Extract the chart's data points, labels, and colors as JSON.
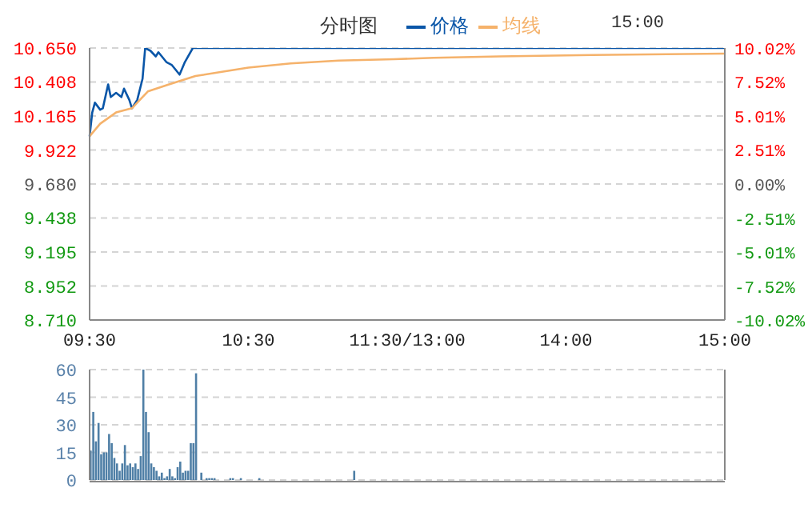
{
  "chart_data": [
    {
      "type": "line",
      "title": "分时图",
      "legend": "top",
      "grid": true,
      "annotations": [
        "15:00"
      ],
      "categories": [
        "09:30",
        null,
        null,
        null,
        null,
        null,
        null,
        null,
        null,
        null,
        null,
        null,
        null,
        null,
        null,
        null,
        null,
        null,
        null,
        null,
        null,
        null,
        null,
        null,
        null,
        null,
        null,
        null,
        null,
        null,
        null,
        null,
        null,
        null,
        null,
        null,
        null,
        null,
        null,
        null,
        null,
        null,
        null,
        null,
        null,
        null,
        null,
        null,
        null,
        null,
        null,
        null,
        null,
        null,
        null,
        null,
        null,
        null,
        null,
        null,
        "10:30",
        null,
        null,
        null,
        null,
        null,
        null,
        null,
        null,
        null,
        null,
        null,
        null,
        null,
        null,
        null,
        null,
        null,
        null,
        null,
        null,
        null,
        null,
        null,
        null,
        null,
        null,
        null,
        null,
        null,
        null,
        null,
        null,
        null,
        null,
        null,
        null,
        null,
        null,
        null,
        null,
        null,
        null,
        null,
        null,
        null,
        null,
        null,
        null,
        null,
        null,
        null,
        null,
        null,
        null,
        null,
        null,
        null,
        null,
        null,
        "11:30/13:00",
        null,
        null,
        null,
        null,
        null,
        null,
        null,
        null,
        null,
        null,
        null,
        null,
        null,
        null,
        null,
        null,
        null,
        null,
        null,
        null,
        null,
        null,
        null,
        null,
        null,
        null,
        null,
        null,
        null,
        null,
        null,
        null,
        null,
        null,
        null,
        null,
        null,
        null,
        null,
        null,
        null,
        null,
        null,
        null,
        null,
        null,
        null,
        null,
        null,
        null,
        null,
        null,
        null,
        null,
        null,
        null,
        null,
        null,
        null,
        "14:00",
        null,
        null,
        null,
        null,
        null,
        null,
        null,
        null,
        null,
        null,
        null,
        null,
        null,
        null,
        null,
        null,
        null,
        null,
        null,
        null,
        null,
        null,
        null,
        null,
        null,
        null,
        null,
        null,
        null,
        null,
        null,
        null,
        null,
        null,
        null,
        null,
        null,
        null,
        null,
        null,
        null,
        null,
        null,
        null,
        null,
        null,
        null,
        null,
        null,
        null,
        null,
        null,
        null,
        null,
        null,
        null,
        null,
        null,
        null,
        "15:00"
      ],
      "ylim": [
        8.71,
        10.65
      ],
      "yticks": [
        {
          "value": 8.71,
          "label": "8.710"
        },
        8.952,
        9.195,
        9.438,
        {
          "value": 9.68,
          "label": "9.680"
        },
        9.922,
        10.165,
        10.408,
        {
          "value": 10.65,
          "label": "10.650"
        }
      ],
      "y2lim": [
        -10.02,
        10.02
      ],
      "y2ticks": [
        {
          "value": -10.02,
          "label": "-10.02%"
        },
        {
          "value": -7.52,
          "label": "-7.52%"
        },
        {
          "value": -5.01,
          "label": "-5.01%"
        },
        {
          "value": -2.51,
          "label": "-2.51%"
        },
        {
          "value": 0,
          "label": "0.00%"
        },
        {
          "value": 2.51,
          "label": "2.51%"
        },
        {
          "value": 5.01,
          "label": "5.01%"
        },
        {
          "value": 7.52,
          "label": "7.52%"
        },
        {
          "value": 10.02,
          "label": "10.02%"
        }
      ],
      "series": [
        {
          "name": "价格",
          "color": "#0a56a8",
          "values": [
            10.02,
            10.19,
            10.26,
            null,
            10.21,
            10.22,
            null,
            10.39,
            10.3,
            null,
            10.33,
            null,
            10.3,
            10.36,
            null,
            10.28,
            10.22,
            null,
            10.28,
            null,
            10.43,
            10.65,
            null,
            10.63,
            null,
            10.59,
            10.62,
            null,
            null,
            10.55,
            null,
            10.53,
            null,
            null,
            10.46,
            null,
            10.55,
            null,
            null,
            10.65,
            null,
            null,
            null,
            null,
            null,
            null,
            null,
            null,
            null,
            null,
            null,
            null,
            null,
            null,
            null,
            null,
            null,
            null,
            null,
            null,
            null,
            null,
            null,
            null,
            null,
            null,
            null,
            null,
            null,
            null,
            null,
            null,
            null,
            null,
            null,
            null,
            null,
            null,
            null,
            null,
            null,
            null,
            null,
            null,
            null,
            null,
            null,
            null,
            null,
            null,
            null,
            null,
            null,
            null,
            null,
            null,
            null,
            null,
            null,
            null,
            null,
            null,
            null,
            null,
            null,
            null,
            null,
            null,
            null,
            null,
            null,
            null,
            null,
            null,
            null,
            null,
            null,
            null,
            null,
            null,
            null,
            null,
            null,
            null,
            null,
            null,
            null,
            null,
            null,
            null,
            null,
            null,
            null,
            null,
            null,
            null,
            null,
            null,
            null,
            null,
            null,
            null,
            null,
            null,
            null,
            null,
            null,
            null,
            null,
            null,
            null,
            null,
            null,
            null,
            null,
            null,
            null,
            null,
            null,
            null,
            null,
            null,
            null,
            null,
            null,
            null,
            null,
            null,
            null,
            null,
            null,
            null,
            null,
            null,
            null,
            null,
            null,
            null,
            null,
            null,
            null,
            null,
            null,
            null,
            null,
            null,
            null,
            null,
            null,
            null,
            null,
            null,
            null,
            null,
            null,
            null,
            null,
            null,
            null,
            null,
            null,
            null,
            null,
            null,
            null,
            null,
            null,
            null,
            null,
            null,
            null,
            null,
            null,
            null,
            null,
            null,
            null,
            null,
            null,
            null,
            null,
            null,
            null,
            null,
            null,
            null,
            null,
            null,
            null,
            null,
            null,
            null,
            null,
            null,
            null,
            null,
            null,
            null,
            null,
            null,
            10.65
          ]
        },
        {
          "name": "均线",
          "color": "#f5b26b",
          "values": [
            10.02,
            null,
            null,
            null,
            10.11,
            null,
            null,
            null,
            null,
            null,
            10.19,
            null,
            null,
            null,
            null,
            null,
            10.22,
            null,
            null,
            null,
            null,
            null,
            10.34,
            null,
            null,
            null,
            null,
            null,
            null,
            null,
            10.39,
            null,
            null,
            null,
            null,
            null,
            null,
            null,
            null,
            null,
            10.45,
            null,
            null,
            null,
            null,
            null,
            null,
            null,
            null,
            null,
            10.48,
            null,
            null,
            null,
            null,
            null,
            null,
            null,
            null,
            null,
            10.51,
            null,
            null,
            null,
            null,
            null,
            null,
            null,
            null,
            null,
            null,
            null,
            null,
            null,
            null,
            null,
            10.54,
            null,
            null,
            null,
            null,
            null,
            null,
            null,
            null,
            null,
            null,
            null,
            null,
            null,
            null,
            null,
            null,
            null,
            10.56,
            null,
            null,
            null,
            null,
            null,
            null,
            null,
            null,
            null,
            null,
            null,
            null,
            null,
            null,
            null,
            null,
            null,
            null,
            null,
            null,
            10.57,
            null,
            null,
            null,
            null,
            null,
            null,
            null,
            null,
            null,
            null,
            null,
            null,
            null,
            null,
            10.58,
            null,
            null,
            null,
            null,
            null,
            null,
            null,
            null,
            null,
            null,
            null,
            null,
            null,
            null,
            null,
            null,
            null,
            null,
            null,
            null,
            null,
            null,
            null,
            null,
            10.59,
            null,
            null,
            null,
            null,
            null,
            null,
            null,
            null,
            null,
            null,
            null,
            null,
            null,
            null,
            null,
            null,
            null,
            null,
            null,
            null,
            null,
            null,
            null,
            null,
            null,
            null,
            null,
            null,
            null,
            null,
            null,
            null,
            null,
            null,
            10.6,
            null,
            null,
            null,
            null,
            null,
            null,
            null,
            null,
            null,
            null,
            null,
            null,
            null,
            null,
            null,
            null,
            null,
            null,
            null,
            null,
            null,
            null,
            null,
            null,
            null,
            null,
            null,
            null,
            null,
            null,
            null,
            null,
            null,
            null,
            null,
            null,
            null,
            null,
            null,
            null,
            null,
            null,
            null,
            null,
            null,
            null,
            null,
            null,
            null,
            10.61
          ]
        }
      ]
    },
    {
      "type": "bar",
      "grid": true,
      "tick_labels": "y",
      "color": "#4f7fa6",
      "categories": [
        null,
        null,
        null,
        null,
        null,
        null,
        null,
        null,
        null,
        null,
        null,
        null,
        null,
        null,
        null,
        null,
        null,
        null,
        null,
        null,
        null,
        null,
        null,
        null,
        null,
        null,
        null,
        null,
        null,
        null,
        null,
        null,
        null,
        null,
        null,
        null,
        null,
        null,
        null,
        null,
        null,
        null,
        null,
        null,
        null,
        null,
        null,
        null,
        null,
        null,
        null,
        null,
        null,
        null,
        null,
        null,
        null,
        null,
        null,
        null,
        null,
        null,
        null,
        null,
        null,
        null,
        null,
        null,
        null,
        null,
        null,
        null,
        null,
        null,
        null,
        null,
        null,
        null,
        null,
        null,
        null,
        null,
        null,
        null,
        null,
        null,
        null,
        null,
        null,
        null,
        null,
        null,
        null,
        null,
        null,
        null,
        null,
        null,
        null,
        null,
        null,
        null,
        null,
        null,
        null,
        null,
        null,
        null,
        null,
        null,
        null,
        null,
        null,
        null,
        null,
        null,
        null,
        null,
        null,
        null,
        null,
        null,
        null,
        null,
        null,
        null,
        null,
        null,
        null,
        null,
        null,
        null,
        null,
        null,
        null,
        null,
        null,
        null,
        null,
        null,
        null,
        null,
        null,
        null,
        null,
        null,
        null,
        null,
        null,
        null,
        null,
        null,
        null,
        null,
        null,
        null,
        null,
        null,
        null,
        null,
        null,
        null,
        null,
        null,
        null,
        null,
        null,
        null,
        null,
        null,
        null,
        null,
        null,
        null,
        null,
        null,
        null,
        null,
        null,
        null,
        null,
        null,
        null,
        null,
        null,
        null,
        null,
        null,
        null,
        null,
        null,
        null,
        null,
        null,
        null,
        null,
        null,
        null,
        null,
        null,
        null,
        null,
        null,
        null,
        null,
        null,
        null,
        null,
        null,
        null,
        null,
        null,
        null,
        null,
        null,
        null,
        null,
        null,
        null,
        null,
        null,
        null,
        null,
        null,
        null,
        null,
        null,
        null,
        null,
        null,
        null,
        null,
        null,
        null,
        null,
        null,
        null,
        null,
        null,
        null,
        null
      ],
      "ylim": [
        0,
        60
      ],
      "yticks": [
        0,
        15,
        30,
        45,
        60
      ],
      "values": [
        16,
        37,
        21,
        31,
        14,
        15,
        15,
        25,
        20,
        12,
        9,
        5,
        9,
        19,
        8,
        9,
        7,
        9,
        6,
        13,
        60,
        37,
        26,
        9,
        7,
        5,
        2,
        4,
        1,
        2,
        6,
        2,
        1,
        7,
        10,
        4,
        5,
        5,
        20,
        20,
        58,
        0,
        4,
        0,
        1,
        1,
        1,
        1,
        0,
        0,
        0,
        0,
        0,
        1,
        1,
        0,
        0,
        1,
        0,
        0,
        0,
        0,
        0,
        0,
        1,
        0,
        0,
        0,
        0,
        0,
        0,
        0,
        0,
        0,
        0,
        0,
        0,
        0,
        0,
        0,
        0,
        0,
        0,
        0,
        0,
        0,
        0,
        0,
        0,
        0,
        0,
        0,
        0,
        0,
        0,
        0,
        0,
        0,
        0,
        0,
        5,
        0,
        0,
        0,
        0,
        0,
        0,
        0,
        0,
        0,
        0,
        0,
        0,
        0,
        0,
        0,
        0,
        0,
        0,
        0,
        0,
        0,
        0,
        0,
        0,
        0,
        0,
        0,
        0,
        0,
        0,
        0,
        0,
        0,
        0,
        0,
        0,
        0,
        0,
        0,
        0,
        0,
        0,
        0,
        0,
        0,
        0,
        0,
        0,
        0,
        0,
        0,
        0,
        0,
        0,
        0,
        0,
        0,
        0,
        0,
        0,
        0,
        0,
        0,
        0,
        0,
        0,
        0,
        0,
        0,
        0,
        0,
        0,
        0,
        0,
        0,
        0,
        0,
        0,
        0,
        0,
        0,
        0,
        0,
        0,
        0,
        0,
        0,
        0,
        0,
        0,
        0,
        0,
        0,
        0,
        0,
        0,
        0,
        0,
        0,
        0,
        0,
        0,
        0,
        0,
        0,
        0,
        0,
        0,
        0,
        0,
        0,
        0,
        0,
        0,
        0,
        0,
        0,
        0,
        0,
        0,
        0,
        0,
        0,
        0,
        0,
        0,
        0,
        0,
        0,
        0,
        0,
        0,
        0,
        0,
        0,
        0,
        0,
        0,
        0,
        0
      ]
    }
  ]
}
